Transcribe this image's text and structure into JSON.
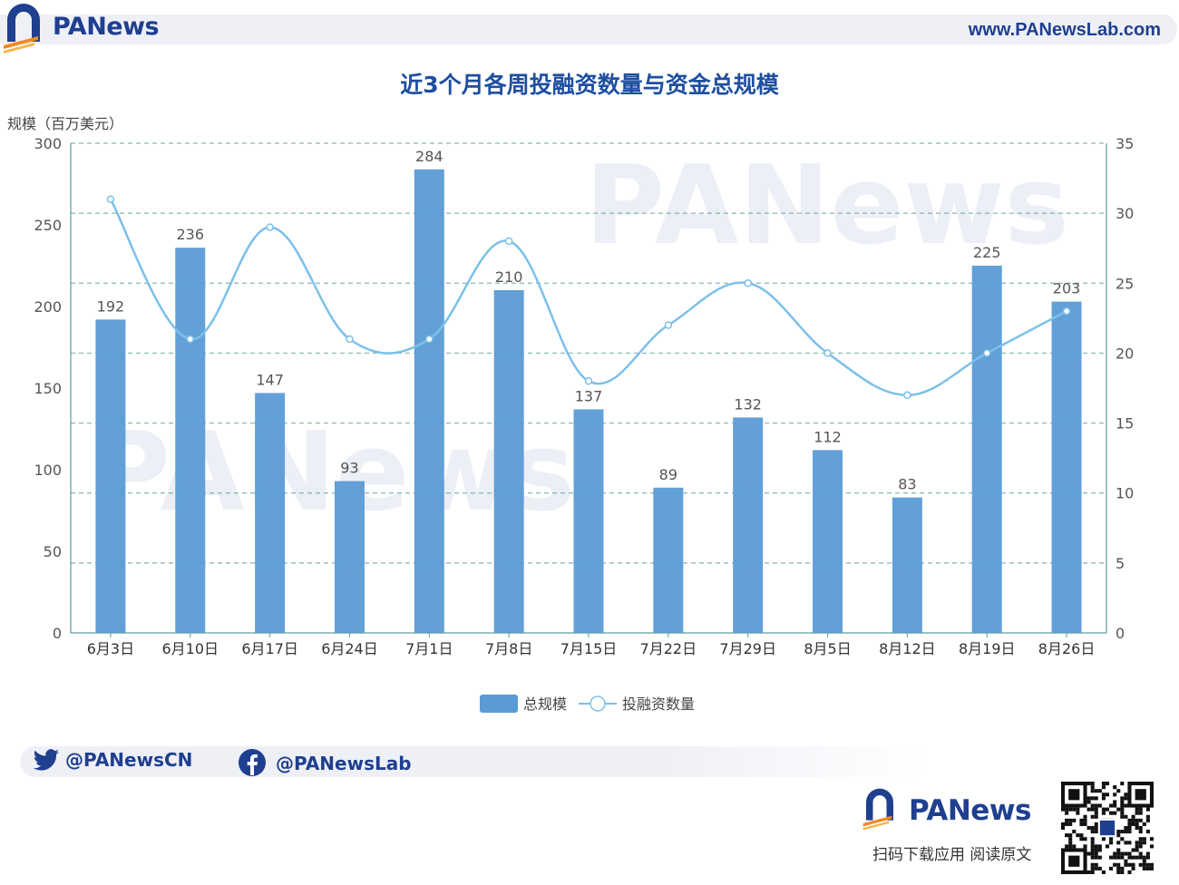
{
  "header": {
    "brand": "PANews",
    "url": "www.PANewsLab.com"
  },
  "chart_data": {
    "type": "bar",
    "title": "近3个月各周投融资数量与资金总规模",
    "ylabel_left": "规模（百万美元）",
    "categories": [
      "6月3日",
      "6月10日",
      "6月17日",
      "6月24日",
      "7月1日",
      "7月8日",
      "7月15日",
      "7月22日",
      "7月29日",
      "8月5日",
      "8月12日",
      "8月19日",
      "8月26日"
    ],
    "series": [
      {
        "name": "总规模",
        "type": "bar",
        "axis": "left",
        "values": [
          192,
          236,
          147,
          93,
          284,
          210,
          137,
          89,
          132,
          112,
          83,
          225,
          203
        ],
        "color": "#5b9bd5"
      },
      {
        "name": "投融资数量",
        "type": "line",
        "axis": "right",
        "values": [
          31,
          21,
          29,
          21,
          21,
          28,
          18,
          22,
          25,
          20,
          17,
          20,
          23
        ],
        "color": "#7cc0ea"
      }
    ],
    "ylim_left": [
      0,
      300
    ],
    "yticks_left": [
      0,
      50,
      100,
      150,
      200,
      250,
      300
    ],
    "ylim_right": [
      0,
      35
    ],
    "yticks_right": [
      0,
      5,
      10,
      15,
      20,
      25,
      30,
      35
    ],
    "grid": true,
    "legend": "bottom-center"
  },
  "social": {
    "twitter": "@PANewsCN",
    "facebook": "@PANewsLab"
  },
  "footer": {
    "brand": "PANews",
    "scan_text": "扫码下载应用  阅读原文"
  },
  "colors": {
    "brand": "#1f3f8f",
    "accent_orange": "#f08a24",
    "bar": "#5b9bd5",
    "line": "#7cc0ea",
    "grid": "#5f9ea0"
  }
}
